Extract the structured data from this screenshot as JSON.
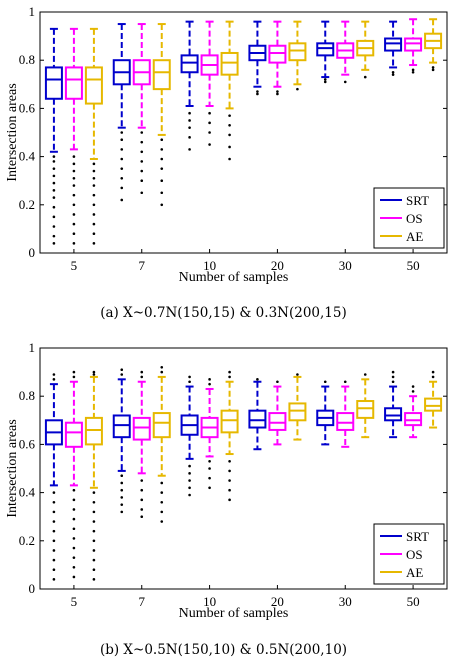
{
  "chart_data": [
    {
      "type": "box",
      "caption": "(a) X~0.7N(150,15) & 0.3N(200,15)",
      "xlabel": "Number of samples",
      "ylabel": "Intersection areas",
      "ylim": [
        0,
        1
      ],
      "yticks": [
        "0",
        "0.2",
        "0.4",
        "0.6",
        "0.8",
        "1"
      ],
      "categories": [
        "5",
        "7",
        "10",
        "20",
        "30",
        "50"
      ],
      "legend": {
        "position": "bottom-right"
      },
      "series": [
        {
          "name": "SRT",
          "color": "#0000cc",
          "boxes": [
            {
              "whisker_low": 0.42,
              "q1": 0.64,
              "median": 0.72,
              "q3": 0.77,
              "whisker_high": 0.93,
              "outliers_low": [
                0.04,
                0.07,
                0.11,
                0.15,
                0.19,
                0.23,
                0.26,
                0.29,
                0.32,
                0.35,
                0.38,
                0.4
              ]
            },
            {
              "whisker_low": 0.52,
              "q1": 0.7,
              "median": 0.75,
              "q3": 0.8,
              "whisker_high": 0.95,
              "outliers_low": [
                0.22,
                0.27,
                0.31,
                0.35,
                0.39,
                0.43,
                0.47,
                0.5
              ]
            },
            {
              "whisker_low": 0.61,
              "q1": 0.75,
              "median": 0.79,
              "q3": 0.82,
              "whisker_high": 0.96,
              "outliers_low": [
                0.43,
                0.48,
                0.52,
                0.55,
                0.58
              ]
            },
            {
              "whisker_low": 0.69,
              "q1": 0.8,
              "median": 0.83,
              "q3": 0.86,
              "whisker_high": 0.96,
              "outliers_low": [
                0.66,
                0.67
              ]
            },
            {
              "whisker_low": 0.73,
              "q1": 0.82,
              "median": 0.85,
              "q3": 0.87,
              "whisker_high": 0.96,
              "outliers_low": [
                0.71,
                0.72
              ]
            },
            {
              "whisker_low": 0.77,
              "q1": 0.84,
              "median": 0.87,
              "q3": 0.89,
              "whisker_high": 0.96,
              "outliers_low": [
                0.74,
                0.75
              ]
            }
          ]
        },
        {
          "name": "OS",
          "color": "#ff00ff",
          "boxes": [
            {
              "whisker_low": 0.43,
              "q1": 0.64,
              "median": 0.72,
              "q3": 0.77,
              "whisker_high": 0.93,
              "outliers_low": [
                0.04,
                0.08,
                0.12,
                0.16,
                0.2,
                0.24,
                0.28,
                0.31,
                0.34,
                0.37,
                0.4
              ]
            },
            {
              "whisker_low": 0.52,
              "q1": 0.7,
              "median": 0.75,
              "q3": 0.8,
              "whisker_high": 0.95,
              "outliers_low": [
                0.25,
                0.3,
                0.34,
                0.38,
                0.42,
                0.46,
                0.5
              ]
            },
            {
              "whisker_low": 0.61,
              "q1": 0.74,
              "median": 0.78,
              "q3": 0.82,
              "whisker_high": 0.96,
              "outliers_low": [
                0.45,
                0.5,
                0.54,
                0.58
              ]
            },
            {
              "whisker_low": 0.69,
              "q1": 0.79,
              "median": 0.83,
              "q3": 0.86,
              "whisker_high": 0.96,
              "outliers_low": [
                0.66,
                0.67
              ]
            },
            {
              "whisker_low": 0.74,
              "q1": 0.81,
              "median": 0.84,
              "q3": 0.87,
              "whisker_high": 0.96,
              "outliers_low": [
                0.71
              ]
            },
            {
              "whisker_low": 0.78,
              "q1": 0.84,
              "median": 0.87,
              "q3": 0.89,
              "whisker_high": 0.97,
              "outliers_low": [
                0.75,
                0.76
              ]
            }
          ]
        },
        {
          "name": "AE",
          "color": "#e6b800",
          "boxes": [
            {
              "whisker_low": 0.39,
              "q1": 0.62,
              "median": 0.72,
              "q3": 0.77,
              "whisker_high": 0.93,
              "outliers_low": [
                0.04,
                0.08,
                0.12,
                0.16,
                0.2,
                0.24,
                0.28,
                0.31,
                0.34,
                0.37
              ]
            },
            {
              "whisker_low": 0.49,
              "q1": 0.68,
              "median": 0.75,
              "q3": 0.8,
              "whisker_high": 0.95,
              "outliers_low": [
                0.2,
                0.25,
                0.3,
                0.35,
                0.39,
                0.43,
                0.47
              ]
            },
            {
              "whisker_low": 0.6,
              "q1": 0.74,
              "median": 0.79,
              "q3": 0.83,
              "whisker_high": 0.96,
              "outliers_low": [
                0.39,
                0.44,
                0.49,
                0.53,
                0.57
              ]
            },
            {
              "whisker_low": 0.7,
              "q1": 0.8,
              "median": 0.84,
              "q3": 0.87,
              "whisker_high": 0.96,
              "outliers_low": [
                0.68
              ]
            },
            {
              "whisker_low": 0.76,
              "q1": 0.82,
              "median": 0.85,
              "q3": 0.88,
              "whisker_high": 0.96,
              "outliers_low": [
                0.73
              ]
            },
            {
              "whisker_low": 0.79,
              "q1": 0.85,
              "median": 0.88,
              "q3": 0.91,
              "whisker_high": 0.97,
              "outliers_low": [
                0.76,
                0.77
              ]
            }
          ]
        }
      ]
    },
    {
      "type": "box",
      "caption": "(b) X~0.5N(150,10) & 0.5N(200,10)",
      "xlabel": "Number of samples",
      "ylabel": "Intersection areas",
      "ylim": [
        0,
        1
      ],
      "yticks": [
        "0",
        "0.2",
        "0.4",
        "0.6",
        "0.8",
        "1"
      ],
      "categories": [
        "5",
        "7",
        "10",
        "20",
        "30",
        "50"
      ],
      "legend": {
        "position": "bottom-right"
      },
      "series": [
        {
          "name": "SRT",
          "color": "#0000cc",
          "boxes": [
            {
              "whisker_low": 0.43,
              "q1": 0.6,
              "median": 0.65,
              "q3": 0.7,
              "whisker_high": 0.85,
              "outliers_low": [
                0.04,
                0.08,
                0.12,
                0.16,
                0.2,
                0.24,
                0.28,
                0.32,
                0.36,
                0.4
              ],
              "outliers_high": [
                0.87,
                0.89
              ]
            },
            {
              "whisker_low": 0.49,
              "q1": 0.63,
              "median": 0.68,
              "q3": 0.72,
              "whisker_high": 0.87,
              "outliers_low": [
                0.32,
                0.35,
                0.38,
                0.41,
                0.44,
                0.47
              ],
              "outliers_high": [
                0.89,
                0.91
              ]
            },
            {
              "whisker_low": 0.54,
              "q1": 0.64,
              "median": 0.68,
              "q3": 0.72,
              "whisker_high": 0.84,
              "outliers_low": [
                0.39,
                0.42,
                0.45,
                0.48,
                0.51
              ],
              "outliers_high": [
                0.86,
                0.88
              ]
            },
            {
              "whisker_low": 0.58,
              "q1": 0.67,
              "median": 0.7,
              "q3": 0.74,
              "whisker_high": 0.86,
              "outliers_high": [
                0.87
              ]
            },
            {
              "whisker_low": 0.6,
              "q1": 0.68,
              "median": 0.71,
              "q3": 0.74,
              "whisker_high": 0.84,
              "outliers_high": [
                0.86
              ]
            },
            {
              "whisker_low": 0.63,
              "q1": 0.7,
              "median": 0.72,
              "q3": 0.75,
              "whisker_high": 0.84,
              "outliers_high": [
                0.86,
                0.88,
                0.9
              ]
            }
          ]
        },
        {
          "name": "OS",
          "color": "#ff00ff",
          "boxes": [
            {
              "whisker_low": 0.43,
              "q1": 0.59,
              "median": 0.65,
              "q3": 0.69,
              "whisker_high": 0.86,
              "outliers_low": [
                0.05,
                0.09,
                0.13,
                0.17,
                0.21,
                0.25,
                0.29,
                0.33,
                0.37,
                0.41
              ],
              "outliers_high": [
                0.88,
                0.9
              ]
            },
            {
              "whisker_low": 0.48,
              "q1": 0.62,
              "median": 0.67,
              "q3": 0.71,
              "whisker_high": 0.86,
              "outliers_low": [
                0.3,
                0.33,
                0.37,
                0.41,
                0.45
              ],
              "outliers_high": [
                0.88,
                0.9
              ]
            },
            {
              "whisker_low": 0.55,
              "q1": 0.63,
              "median": 0.67,
              "q3": 0.71,
              "whisker_high": 0.83,
              "outliers_low": [
                0.42,
                0.46,
                0.5,
                0.53
              ],
              "outliers_high": [
                0.85,
                0.87
              ]
            },
            {
              "whisker_low": 0.6,
              "q1": 0.66,
              "median": 0.69,
              "q3": 0.73,
              "whisker_high": 0.84,
              "outliers_high": [
                0.86
              ]
            },
            {
              "whisker_low": 0.59,
              "q1": 0.66,
              "median": 0.69,
              "q3": 0.73,
              "whisker_high": 0.84,
              "outliers_high": [
                0.86
              ]
            },
            {
              "whisker_low": 0.63,
              "q1": 0.68,
              "median": 0.7,
              "q3": 0.73,
              "whisker_high": 0.8,
              "outliers_high": [
                0.82,
                0.84
              ]
            }
          ]
        },
        {
          "name": "AE",
          "color": "#e6b800",
          "boxes": [
            {
              "whisker_low": 0.42,
              "q1": 0.6,
              "median": 0.66,
              "q3": 0.71,
              "whisker_high": 0.88,
              "outliers_low": [
                0.04,
                0.08,
                0.12,
                0.16,
                0.2,
                0.24,
                0.28,
                0.32,
                0.36,
                0.4
              ],
              "outliers_high": [
                0.89,
                0.9
              ]
            },
            {
              "whisker_low": 0.47,
              "q1": 0.63,
              "median": 0.69,
              "q3": 0.73,
              "whisker_high": 0.88,
              "outliers_low": [
                0.28,
                0.32,
                0.36,
                0.4,
                0.44
              ],
              "outliers_high": [
                0.9,
                0.92
              ]
            },
            {
              "whisker_low": 0.56,
              "q1": 0.65,
              "median": 0.7,
              "q3": 0.74,
              "whisker_high": 0.86,
              "outliers_low": [
                0.37,
                0.41,
                0.45,
                0.49,
                0.53
              ],
              "outliers_high": [
                0.88,
                0.9
              ]
            },
            {
              "whisker_low": 0.62,
              "q1": 0.7,
              "median": 0.74,
              "q3": 0.77,
              "whisker_high": 0.88,
              "outliers_high": [
                0.89
              ]
            },
            {
              "whisker_low": 0.63,
              "q1": 0.71,
              "median": 0.75,
              "q3": 0.78,
              "whisker_high": 0.87,
              "outliers_high": [
                0.89
              ]
            },
            {
              "whisker_low": 0.67,
              "q1": 0.74,
              "median": 0.76,
              "q3": 0.79,
              "whisker_high": 0.86,
              "outliers_high": [
                0.88,
                0.9
              ]
            }
          ]
        }
      ]
    }
  ]
}
